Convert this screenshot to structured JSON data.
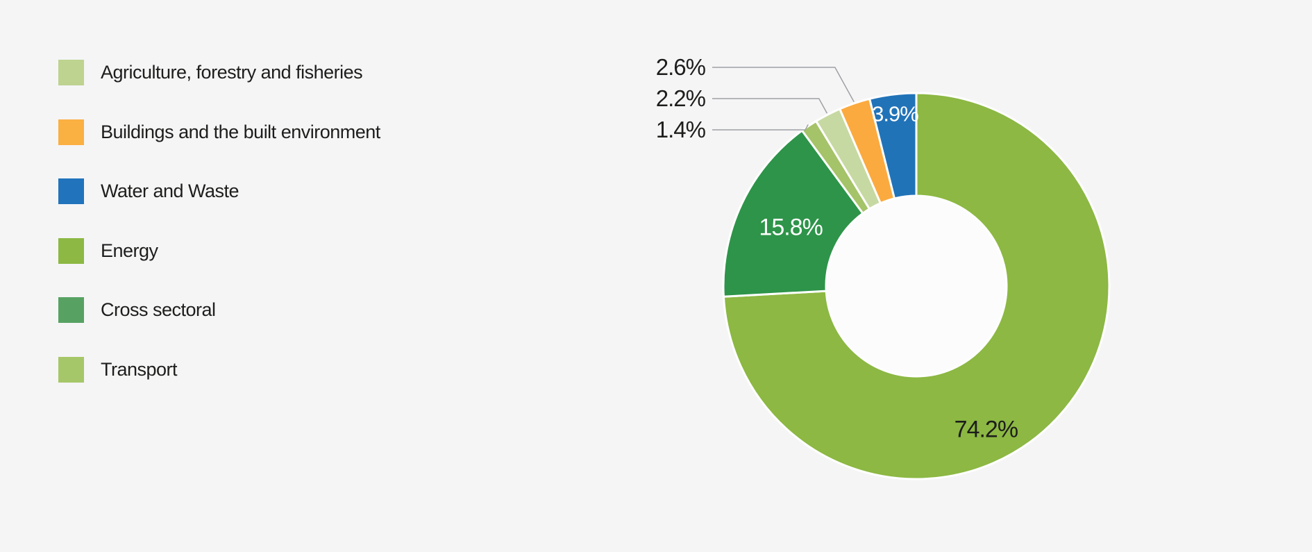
{
  "page": {
    "background_color": "#f5f5f6",
    "text_color": "#1d1d1b",
    "leader_line_color": "#9da0a3"
  },
  "legend": {
    "items": [
      {
        "label": "Agriculture, forestry and fisheries",
        "color": "#bdd38f"
      },
      {
        "label": "Buildings and the built environment",
        "color": "#fbb042"
      },
      {
        "label": "Water and Waste",
        "color": "#2173bc"
      },
      {
        "label": "Energy",
        "color": "#8cb843"
      },
      {
        "label": "Cross sectoral",
        "color": "#57a263"
      },
      {
        "label": "Transport",
        "color": "#a6c769"
      }
    ]
  },
  "chart_data": {
    "type": "pie",
    "subtype": "donut",
    "start_angle_deg": 0,
    "direction": "clockwise",
    "legend_position": "left",
    "hole_color": "#fcfcfc",
    "separator_color": "#ffffff",
    "slices": [
      {
        "label": "Energy",
        "value": 74.2,
        "display": "74.2%",
        "color": "#8cb843",
        "label_style": "inside-dark"
      },
      {
        "label": "Cross sectoral",
        "value": 15.8,
        "display": "15.8%",
        "color": "#2d9449",
        "label_style": "inside-white"
      },
      {
        "label": "Transport",
        "value": 1.4,
        "display": "1.4%",
        "color": "#a5c368",
        "label_style": "callout"
      },
      {
        "label": "Agriculture, forestry and fisheries",
        "value": 2.2,
        "display": "2.2%",
        "color": "#c7d9a2",
        "label_style": "callout"
      },
      {
        "label": "Buildings and the built environment",
        "value": 2.6,
        "display": "2.6%",
        "color": "#fbaa3f",
        "label_style": "callout"
      },
      {
        "label": "Water and Waste",
        "value": 3.9,
        "display": "3.9%",
        "color": "#2173b8",
        "label_style": "inside-white"
      }
    ]
  }
}
